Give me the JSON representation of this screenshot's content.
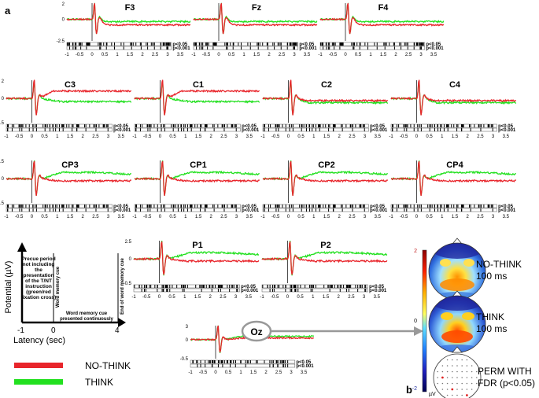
{
  "panel_labels": {
    "a": "a",
    "b": "b"
  },
  "x_ticks": [
    "-1",
    "-0.5",
    "0",
    "0.5",
    "1",
    "1.5",
    "2",
    "2.5",
    "3",
    "3.5"
  ],
  "p_labels": {
    "p05": "p<0.05",
    "p001": "p<0.001"
  },
  "chart_data": {
    "type": "line",
    "xlabel": "Latency (sec)",
    "ylabel": "Potential (µV)",
    "x_range": [
      -1,
      4
    ],
    "legend": [
      {
        "name": "NO-THINK",
        "color": "#e8252b"
      },
      {
        "name": "THINK",
        "color": "#22e01f"
      }
    ],
    "panels": [
      {
        "id": "F3",
        "title": "F3",
        "y_ticks": [
          "2",
          "0",
          "-2.5"
        ],
        "pattern": "frontal"
      },
      {
        "id": "Fz",
        "title": "Fz",
        "y_ticks": [],
        "pattern": "frontal"
      },
      {
        "id": "F4",
        "title": "F4",
        "y_ticks": [],
        "pattern": "frontal"
      },
      {
        "id": "C3",
        "title": "C3",
        "y_ticks": [
          "2",
          "0",
          "-1.5"
        ],
        "pattern": "c_left"
      },
      {
        "id": "C1",
        "title": "C1",
        "y_ticks": [],
        "pattern": "c_left"
      },
      {
        "id": "C2",
        "title": "C2",
        "y_ticks": [],
        "pattern": "c_right"
      },
      {
        "id": "C4",
        "title": "C4",
        "y_ticks": [],
        "pattern": "c_right"
      },
      {
        "id": "CP3",
        "title": "CP3",
        "y_ticks": [
          "2.5",
          "0",
          "-1.5"
        ],
        "pattern": "parietal"
      },
      {
        "id": "CP1",
        "title": "CP1",
        "y_ticks": [],
        "pattern": "parietal"
      },
      {
        "id": "CP2",
        "title": "CP2",
        "y_ticks": [],
        "pattern": "parietal"
      },
      {
        "id": "CP4",
        "title": "CP4",
        "y_ticks": [],
        "pattern": "parietal"
      },
      {
        "id": "P1",
        "title": "P1",
        "y_ticks": [
          "2.5",
          "0",
          "-0.5"
        ],
        "pattern": "parietal"
      },
      {
        "id": "P2",
        "title": "P2",
        "y_ticks": [],
        "pattern": "parietal"
      },
      {
        "id": "Oz",
        "title": "Oz",
        "y_ticks": [
          "3",
          "0",
          "-0.5"
        ],
        "pattern": "occipital"
      }
    ]
  },
  "schematic": {
    "ylabel": "Potential (µV)",
    "xlabel": "Latency (sec)",
    "ticks": [
      "-1",
      "0",
      "4"
    ],
    "precue_text": [
      "Precue period",
      "not including",
      "the",
      "presentation",
      "of the T/NT",
      "instruction",
      "(green/red",
      "fixation cross)"
    ],
    "cue_label": "Word memory cue",
    "end_label": "End of word memory cue",
    "presented_text": [
      "Word memory cue",
      "presented continuously"
    ]
  },
  "oz_callout": "Oz",
  "topomaps": {
    "colorbar_ticks": [
      "2",
      "0",
      "-2"
    ],
    "unit": "µV",
    "maps": [
      {
        "title": "NO-THINK",
        "subtitle": "100 ms"
      },
      {
        "title": "THINK",
        "subtitle": "100 ms"
      },
      {
        "title": "PERM WITH",
        "subtitle": "FDR (p<0.05)"
      }
    ]
  }
}
